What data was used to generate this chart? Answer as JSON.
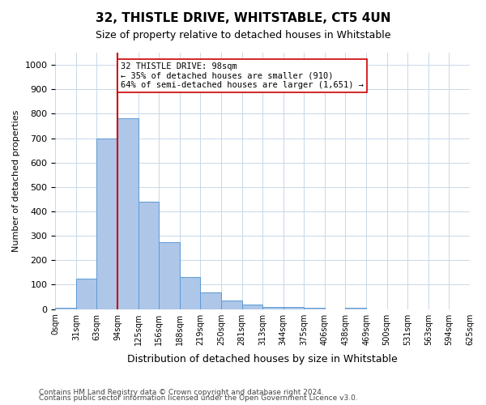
{
  "title": "32, THISTLE DRIVE, WHITSTABLE, CT5 4UN",
  "subtitle": "Size of property relative to detached houses in Whitstable",
  "xlabel": "Distribution of detached houses by size in Whitstable",
  "ylabel": "Number of detached properties",
  "bar_values": [
    5,
    125,
    700,
    780,
    440,
    275,
    130,
    70,
    35,
    20,
    10,
    10,
    5,
    0,
    5,
    0,
    0,
    0,
    0,
    0
  ],
  "bin_labels": [
    "0sqm",
    "31sqm",
    "63sqm",
    "94sqm",
    "125sqm",
    "156sqm",
    "188sqm",
    "219sqm",
    "250sqm",
    "281sqm",
    "313sqm",
    "344sqm",
    "375sqm",
    "406sqm",
    "438sqm",
    "469sqm",
    "500sqm",
    "531sqm",
    "563sqm",
    "594sqm",
    "625sqm"
  ],
  "bar_color": "#aec6e8",
  "bar_edge_color": "#5b9bd5",
  "vline_x": 3,
  "vline_color": "#cc0000",
  "annotation_text": "32 THISTLE DRIVE: 98sqm\n← 35% of detached houses are smaller (910)\n64% of semi-detached houses are larger (1,651) →",
  "annotation_box_color": "#ffffff",
  "annotation_box_edge": "#cc0000",
  "ylim": [
    0,
    1050
  ],
  "yticks": [
    0,
    100,
    200,
    300,
    400,
    500,
    600,
    700,
    800,
    900,
    1000
  ],
  "footer_line1": "Contains HM Land Registry data © Crown copyright and database right 2024.",
  "footer_line2": "Contains public sector information licensed under the Open Government Licence v3.0.",
  "background_color": "#ffffff",
  "grid_color": "#c8d8e8"
}
